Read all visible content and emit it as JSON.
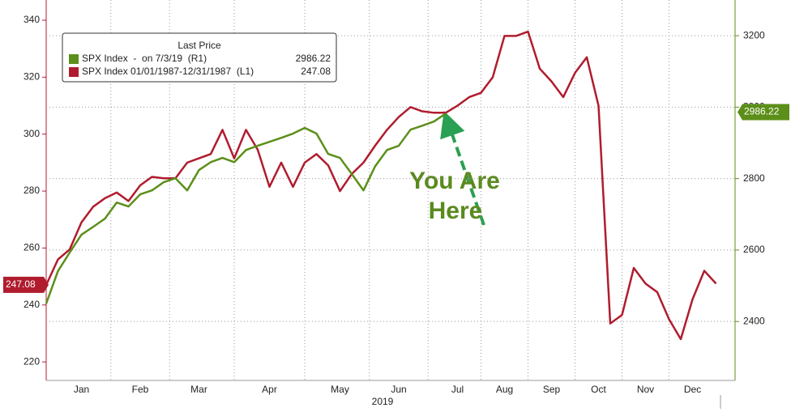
{
  "chart_data": {
    "type": "line",
    "legend_title": "Last Price",
    "annotation": [
      "You Are",
      "Here"
    ],
    "x_label": "2019",
    "categories": [
      null,
      null,
      null,
      "Jan",
      null,
      null,
      null,
      null,
      "Feb",
      null,
      null,
      null,
      null,
      "Mar",
      null,
      null,
      null,
      null,
      null,
      "Apr",
      null,
      null,
      null,
      null,
      null,
      "May",
      null,
      null,
      null,
      null,
      "Jun",
      null,
      null,
      null,
      null,
      "Jul",
      null,
      null,
      null,
      "Aug",
      null,
      null,
      null,
      "Sep",
      null,
      null,
      null,
      "Oct",
      null,
      null,
      null,
      "Nov",
      null,
      null,
      null,
      "Dec",
      null,
      null
    ],
    "series": [
      {
        "name": "SPX Index  -  on 7/3/19  (R1)",
        "color": "#5c8f1a",
        "axis": "y2",
        "last_value": 2986.22,
        "values": [
          2450,
          2541,
          2593,
          2643,
          2665,
          2688,
          2733,
          2722,
          2756,
          2767,
          2790,
          2801,
          2767,
          2824,
          2846,
          2858,
          2846,
          2880,
          2892,
          2903,
          2914,
          2926,
          2942,
          2926,
          2869,
          2858,
          2813,
          2767,
          2835,
          2880,
          2892,
          2937,
          2948,
          2960,
          2982,
          null,
          null,
          null,
          null,
          null,
          null,
          null,
          null,
          null,
          null,
          null,
          null,
          null,
          null,
          null,
          null,
          null,
          null,
          null,
          null,
          null,
          null,
          null
        ]
      },
      {
        "name": "SPX Index 01/01/1987-12/31/1987  (L1)",
        "color": "#b01c2e",
        "last_value": 247.08,
        "values": [
          247,
          256,
          259.5,
          269,
          274.5,
          277.5,
          279.5,
          276.5,
          282,
          285,
          284.5,
          284.5,
          290,
          291.5,
          293,
          301.5,
          291.5,
          301.5,
          294.5,
          281.5,
          290,
          281.5,
          290,
          293,
          289,
          280,
          286,
          290,
          296,
          301.5,
          306,
          309.5,
          308,
          307.5,
          307.5,
          310,
          313,
          314.5,
          320,
          334.5,
          334.5,
          336,
          323,
          318.5,
          313,
          321.5,
          327,
          310,
          233.5,
          236.5,
          253,
          247.5,
          244.5,
          235,
          228,
          242,
          252,
          247.5
        ]
      }
    ],
    "ylim": [
      213.5,
      347.1
    ],
    "yticks": [
      220,
      240,
      260,
      280,
      300,
      320,
      340
    ],
    "y2lim": [
      2235,
      3300
    ],
    "y2ticks": [
      2400,
      2600,
      2800,
      3000,
      3200
    ],
    "grid": true
  }
}
